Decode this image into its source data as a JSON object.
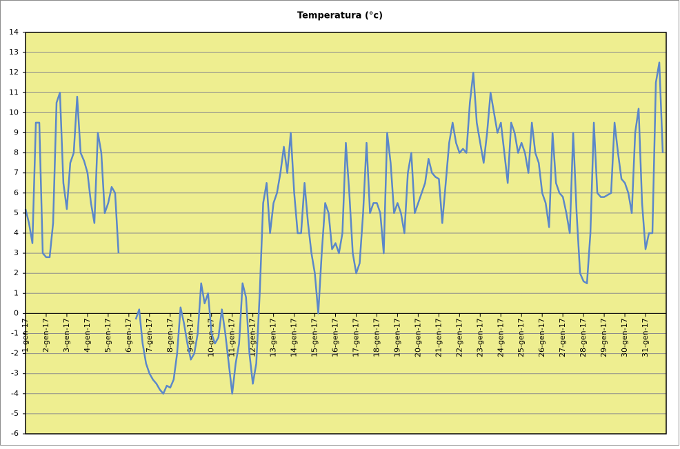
{
  "chart_data": {
    "type": "line",
    "title": "Temperatura (°c)",
    "categories": [
      "1-gen-17",
      null,
      null,
      null,
      null,
      null,
      "2-gen-17",
      null,
      null,
      null,
      null,
      null,
      "3-gen-17",
      null,
      null,
      null,
      null,
      null,
      "4-gen-17",
      null,
      null,
      null,
      null,
      null,
      "5-gen-17",
      null,
      null,
      null,
      null,
      null,
      "6-gen-17",
      null,
      null,
      null,
      null,
      null,
      "7-gen-17",
      null,
      null,
      null,
      null,
      null,
      "8-gen-17",
      null,
      null,
      null,
      null,
      null,
      "9-gen-17",
      null,
      null,
      null,
      null,
      null,
      "10-gen-17",
      null,
      null,
      null,
      null,
      null,
      "11-gen-17",
      null,
      null,
      null,
      null,
      null,
      "12-gen-17",
      null,
      null,
      null,
      null,
      null,
      "13-gen-17",
      null,
      null,
      null,
      null,
      null,
      "14-gen-17",
      null,
      null,
      null,
      null,
      null,
      "15-gen-17",
      null,
      null,
      null,
      null,
      null,
      "16-gen-17",
      null,
      null,
      null,
      null,
      null,
      "17-gen-17",
      null,
      null,
      null,
      null,
      null,
      "18-gen-17",
      null,
      null,
      null,
      null,
      null,
      "19-gen-17",
      null,
      null,
      null,
      null,
      null,
      "20-gen-17",
      null,
      null,
      null,
      null,
      null,
      "21-gen-17",
      null,
      null,
      null,
      null,
      null,
      "22-gen-17",
      null,
      null,
      null,
      null,
      null,
      "23-gen-17",
      null,
      null,
      null,
      null,
      null,
      "24-gen-17",
      null,
      null,
      null,
      null,
      null,
      "25-gen-17",
      null,
      null,
      null,
      null,
      null,
      "26-gen-17",
      null,
      null,
      null,
      null,
      null,
      "27-gen-17",
      null,
      null,
      null,
      null,
      null,
      "28-gen-17",
      null,
      null,
      null,
      null,
      null,
      "29-gen-17",
      null,
      null,
      null,
      null,
      null,
      "30-gen-17",
      null,
      null,
      null,
      null,
      null,
      "31-gen-17",
      null,
      null,
      null,
      null,
      null
    ],
    "series": [
      {
        "color": "#5b87c9",
        "values": [
          5.2,
          4.5,
          3.5,
          9.5,
          9.5,
          3.0,
          2.8,
          2.8,
          4.5,
          10.5,
          11,
          6.5,
          5.2,
          7.5,
          8,
          10.8,
          8,
          7.6,
          7,
          5.5,
          4.5,
          9,
          8,
          5,
          5.5,
          6.3,
          6,
          3,
          null,
          null,
          null,
          null,
          -0.3,
          0.2,
          -1.5,
          -2.5,
          -3,
          -3.3,
          -3.5,
          -3.8,
          -4,
          -3.6,
          -3.7,
          -3.3,
          -2,
          0.3,
          -0.5,
          -1.5,
          -2.3,
          -2,
          -1,
          1.5,
          0.5,
          1,
          -1,
          -1.5,
          -1.2,
          0.2,
          -1,
          -2.5,
          -4,
          -2.5,
          -1.5,
          1.5,
          0.8,
          -2,
          -3.5,
          -2.5,
          1,
          5.5,
          6.5,
          4,
          5.5,
          6,
          7,
          8.3,
          7,
          9,
          6,
          4,
          4,
          6.5,
          4.5,
          3,
          2,
          0,
          3,
          5.5,
          5,
          3.2,
          3.5,
          3,
          4,
          8.5,
          6,
          3,
          2,
          2.5,
          5,
          8.5,
          5,
          5.5,
          5.5,
          5,
          3,
          9,
          7.5,
          5,
          5.5,
          5,
          4,
          7,
          8,
          5,
          5.5,
          6,
          6.5,
          7.7,
          7,
          6.8,
          6.7,
          4.5,
          6.5,
          8.5,
          9.5,
          8.5,
          8,
          8.2,
          8,
          10.5,
          12,
          9.5,
          8.5,
          7.5,
          9,
          11,
          10,
          9,
          9.5,
          8,
          6.5,
          9.5,
          9,
          8,
          8.5,
          8,
          7,
          9.5,
          8,
          7.5,
          6,
          5.5,
          4.3,
          9,
          6.5,
          6,
          5.8,
          5,
          4,
          9,
          5,
          2,
          1.6,
          1.5,
          4,
          9.5,
          6,
          5.8,
          5.8,
          5.9,
          6,
          9.5,
          8,
          6.7,
          6.5,
          6,
          5,
          9,
          10.2,
          5.5,
          3.2,
          4,
          4,
          11.5,
          12.5,
          8
        ]
      }
    ],
    "ylim": [
      -6,
      14
    ],
    "yticks": [
      -6,
      -5,
      -4,
      -3,
      -2,
      -1,
      0,
      1,
      2,
      3,
      4,
      5,
      6,
      7,
      8,
      9,
      10,
      11,
      12,
      13,
      14
    ],
    "grid": true
  }
}
